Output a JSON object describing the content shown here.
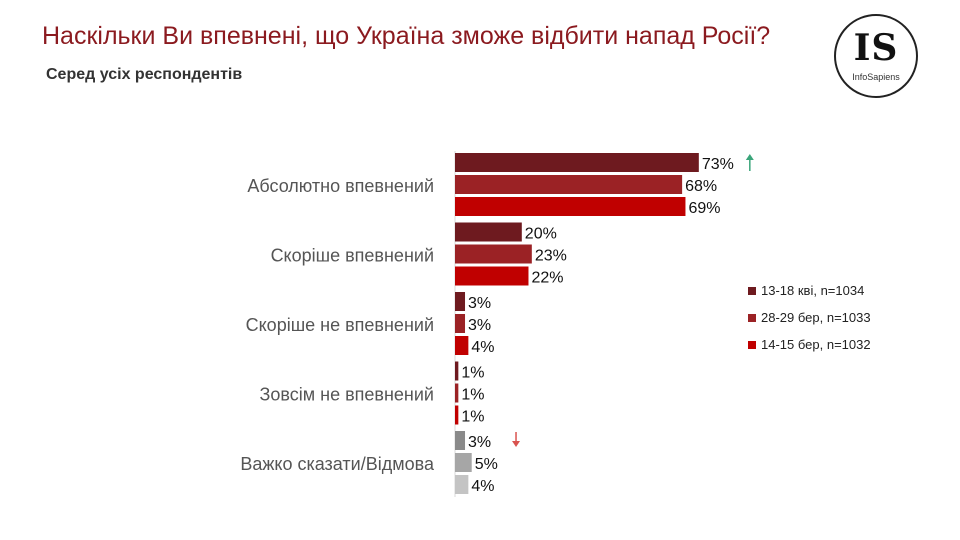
{
  "header": {
    "title": "Наскільки Ви впевнені, що Україна зможе відбити напад Росії?",
    "subtitle": "Серед усіх респондентів"
  },
  "logo": {
    "mark": "IS",
    "name": "InfoSapiens"
  },
  "chart_data": {
    "type": "bar",
    "orientation": "horizontal",
    "categories": [
      "Абсолютно впевнений",
      "Скоріше впевнений",
      "Скоріше не впевнений",
      "Зовсім не впевнений",
      "Важко сказати/Відмова"
    ],
    "series": [
      {
        "name": "13-18 кві, n=1034",
        "color": "#6e1a1f",
        "values": [
          73,
          20,
          3,
          1,
          3
        ]
      },
      {
        "name": "28-29 бер, n=1033",
        "color": "#9b2225",
        "values": [
          68,
          23,
          3,
          1,
          5
        ]
      },
      {
        "name": "14-15 бер, n=1032",
        "color": "#c00000",
        "values": [
          69,
          22,
          4,
          1,
          4
        ]
      }
    ],
    "last_category_colors": [
      "#8a8a8a",
      "#a6a6a6",
      "#c4c4c4"
    ],
    "value_suffix": "%",
    "xlim": [
      0,
      100
    ],
    "grid": false,
    "legend_position": "right",
    "annotations": [
      {
        "category_index": 0,
        "series_index": 0,
        "icon": "arrow-up-icon",
        "color": "#3aa57a"
      },
      {
        "category_index": 4,
        "series_index": 0,
        "icon": "arrow-down-icon",
        "color": "#d9534f"
      }
    ]
  }
}
